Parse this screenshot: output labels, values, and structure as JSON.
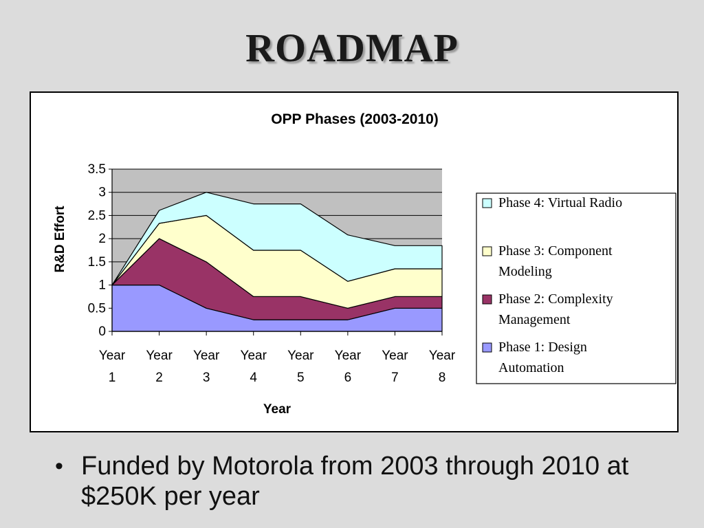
{
  "slide": {
    "title": "ROADMAP",
    "bullet_symbol": "•",
    "bullet": "Funded by Motorola from 2003 through 2010 at $250K per year"
  },
  "chart_data": {
    "type": "area",
    "stacked": true,
    "title": "OPP Phases (2003-2010)",
    "xlabel": "Year",
    "ylabel": "R&D Effort",
    "categories": [
      [
        "Year",
        "1"
      ],
      [
        "Year",
        "2"
      ],
      [
        "Year",
        "3"
      ],
      [
        "Year",
        "4"
      ],
      [
        "Year",
        "5"
      ],
      [
        "Year",
        "6"
      ],
      [
        "Year",
        "7"
      ],
      [
        "Year",
        "8"
      ]
    ],
    "ylim": [
      0,
      3.5
    ],
    "yticks": [
      "0",
      "0.5",
      "1",
      "1.5",
      "2",
      "2.5",
      "3",
      "3.5"
    ],
    "grid": true,
    "plot_background": "#c0c0c0",
    "legend_position": "right",
    "series": [
      {
        "name": "Phase 1: Design Automation",
        "legend_lines": [
          "Phase 1: Design",
          "Automation"
        ],
        "color": "#9999ff",
        "values": [
          1,
          1,
          0.5,
          0.25,
          0.25,
          0.25,
          0.5,
          0.5
        ]
      },
      {
        "name": "Phase 2: Complexity Management",
        "legend_lines": [
          "Phase 2: Complexity",
          "Management"
        ],
        "color": "#993366",
        "values": [
          0,
          1,
          1,
          0.5,
          0.5,
          0.25,
          0.25,
          0.25
        ]
      },
      {
        "name": "Phase 3: Component Modeling",
        "legend_lines": [
          "Phase 3: Component",
          "Modeling"
        ],
        "color": "#ffffcc",
        "values": [
          0,
          0.33,
          1,
          1,
          1,
          0.58,
          0.6,
          0.6
        ]
      },
      {
        "name": "Phase 4: Virtual Radio",
        "legend_lines": [
          "Phase 4: Virtual Radio"
        ],
        "color": "#ccffff",
        "values": [
          0,
          0.28,
          0.5,
          1,
          1,
          1,
          0.5,
          0.5
        ]
      }
    ]
  }
}
